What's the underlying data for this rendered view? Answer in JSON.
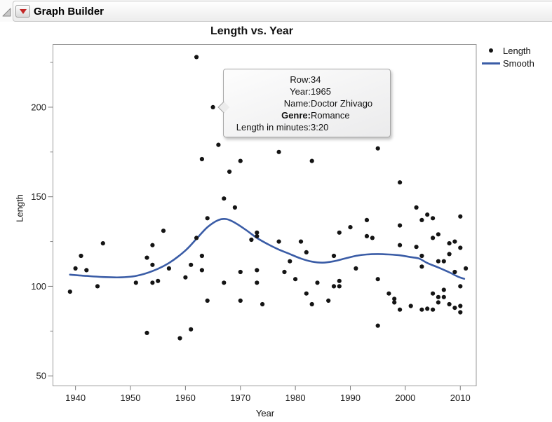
{
  "window": {
    "title": "Graph Builder"
  },
  "header": {
    "disclosure_icon": "open-outline-triangle",
    "menu_icon": "red-triangle"
  },
  "chart_data": {
    "type": "scatter",
    "title": "Length vs. Year",
    "xlabel": "Year",
    "ylabel": "Length",
    "x_ticks": [
      1940,
      1950,
      1960,
      1970,
      1980,
      1990,
      2000,
      2010
    ],
    "y_ticks": [
      50,
      100,
      150,
      200
    ],
    "y_minor_ticks": [
      75,
      125,
      175,
      225
    ],
    "xlim": [
      1935.9,
      2012.9
    ],
    "ylim": [
      44.4,
      235.0
    ],
    "grid": false,
    "legend_position": "right",
    "point_color": "#141414",
    "smooth_color": "#3A5CA6",
    "series": [
      {
        "name": "Length",
        "type": "scatter",
        "points": [
          [
            1939,
            97
          ],
          [
            1940,
            110
          ],
          [
            1941,
            117
          ],
          [
            1942,
            109
          ],
          [
            1944,
            100
          ],
          [
            1945,
            124
          ],
          [
            1951,
            102
          ],
          [
            1953,
            74
          ],
          [
            1953,
            116
          ],
          [
            1954,
            123
          ],
          [
            1954,
            112
          ],
          [
            1954,
            102
          ],
          [
            1955,
            103
          ],
          [
            1956,
            131
          ],
          [
            1957,
            110
          ],
          [
            1959,
            71
          ],
          [
            1960,
            105
          ],
          [
            1961,
            76
          ],
          [
            1961,
            112
          ],
          [
            1962,
            228
          ],
          [
            1962,
            127
          ],
          [
            1963,
            171
          ],
          [
            1963,
            117
          ],
          [
            1963,
            109
          ],
          [
            1964,
            138
          ],
          [
            1964,
            92
          ],
          [
            1965,
            200
          ],
          [
            1966,
            179
          ],
          [
            1967,
            149
          ],
          [
            1967,
            102
          ],
          [
            1968,
            164
          ],
          [
            1969,
            144
          ],
          [
            1970,
            170
          ],
          [
            1970,
            108
          ],
          [
            1970,
            92
          ],
          [
            1972,
            126
          ],
          [
            1973,
            130
          ],
          [
            1973,
            128
          ],
          [
            1973,
            109
          ],
          [
            1973,
            102
          ],
          [
            1974,
            90
          ],
          [
            1977,
            175
          ],
          [
            1977,
            125
          ],
          [
            1978,
            108
          ],
          [
            1979,
            114
          ],
          [
            1980,
            104
          ],
          [
            1981,
            125
          ],
          [
            1982,
            119
          ],
          [
            1982,
            96
          ],
          [
            1983,
            170
          ],
          [
            1983,
            90
          ],
          [
            1984,
            102
          ],
          [
            1986,
            92
          ],
          [
            1987,
            117
          ],
          [
            1987,
            100
          ],
          [
            1988,
            130
          ],
          [
            1988,
            103
          ],
          [
            1988,
            100
          ],
          [
            1990,
            133
          ],
          [
            1991,
            110
          ],
          [
            1993,
            137
          ],
          [
            1993,
            128
          ],
          [
            1994,
            127
          ],
          [
            1995,
            177
          ],
          [
            1995,
            104
          ],
          [
            1995,
            78
          ],
          [
            1997,
            96
          ],
          [
            1998,
            93
          ],
          [
            1998,
            91
          ],
          [
            1999,
            158
          ],
          [
            1999,
            134
          ],
          [
            1999,
            123
          ],
          [
            1999,
            87
          ],
          [
            2001,
            89
          ],
          [
            2002,
            144
          ],
          [
            2002,
            122
          ],
          [
            2003,
            137
          ],
          [
            2003,
            117
          ],
          [
            2003,
            111
          ],
          [
            2003,
            87
          ],
          [
            2004,
            140
          ],
          [
            2004,
            87.5
          ],
          [
            2005,
            138
          ],
          [
            2005,
            127
          ],
          [
            2005,
            96
          ],
          [
            2005,
            87
          ],
          [
            2006,
            129
          ],
          [
            2006,
            114
          ],
          [
            2006,
            94
          ],
          [
            2006,
            91
          ],
          [
            2007,
            114
          ],
          [
            2007,
            98
          ],
          [
            2007,
            94
          ],
          [
            2008,
            124
          ],
          [
            2008,
            118
          ],
          [
            2008,
            90
          ],
          [
            2009,
            125
          ],
          [
            2009,
            108
          ],
          [
            2009,
            88
          ],
          [
            2010,
            139
          ],
          [
            2010,
            121.5
          ],
          [
            2010,
            100
          ],
          [
            2010,
            89
          ],
          [
            2010,
            85.5
          ],
          [
            2011,
            110
          ]
        ]
      },
      {
        "name": "Smooth",
        "type": "line",
        "points": [
          [
            1939,
            106.5
          ],
          [
            1942,
            105.8
          ],
          [
            1945,
            105.2
          ],
          [
            1948,
            105
          ],
          [
            1951,
            105.8
          ],
          [
            1954,
            108.5
          ],
          [
            1957,
            113
          ],
          [
            1960,
            120
          ],
          [
            1962,
            126.5
          ],
          [
            1964,
            133
          ],
          [
            1966,
            137
          ],
          [
            1967.5,
            137.5
          ],
          [
            1969,
            135.5
          ],
          [
            1971,
            131.5
          ],
          [
            1973,
            127
          ],
          [
            1975,
            123.5
          ],
          [
            1977,
            120.5
          ],
          [
            1979,
            118
          ],
          [
            1981,
            115.5
          ],
          [
            1983,
            113.8
          ],
          [
            1985,
            113.2
          ],
          [
            1987,
            114
          ],
          [
            1989,
            115.5
          ],
          [
            1991,
            117
          ],
          [
            1993,
            117.8
          ],
          [
            1995,
            118
          ],
          [
            1997,
            117.8
          ],
          [
            1999,
            117.3
          ],
          [
            2001,
            116.3
          ],
          [
            2002.5,
            115.5
          ],
          [
            2004,
            113
          ],
          [
            2006,
            110.5
          ],
          [
            2008,
            107.8
          ],
          [
            2009.5,
            105.5
          ],
          [
            2010.7,
            104.2
          ]
        ]
      }
    ],
    "legend": {
      "entries": [
        {
          "label": "Length",
          "marker": "dot",
          "color": "#141414"
        },
        {
          "label": "Smooth",
          "marker": "line",
          "color": "#3A5CA6"
        }
      ]
    }
  },
  "tooltip": {
    "rows": [
      {
        "label": "Row:",
        "value": "34",
        "bold": false
      },
      {
        "label": "Year:",
        "value": "1965",
        "bold": false
      },
      {
        "label": "Name:",
        "value": "Doctor Zhivago",
        "bold": false
      },
      {
        "label": "Genre:",
        "value": "Romance",
        "bold": true
      },
      {
        "label": "Length in minutes:",
        "value": "3:20",
        "bold": false
      }
    ]
  }
}
